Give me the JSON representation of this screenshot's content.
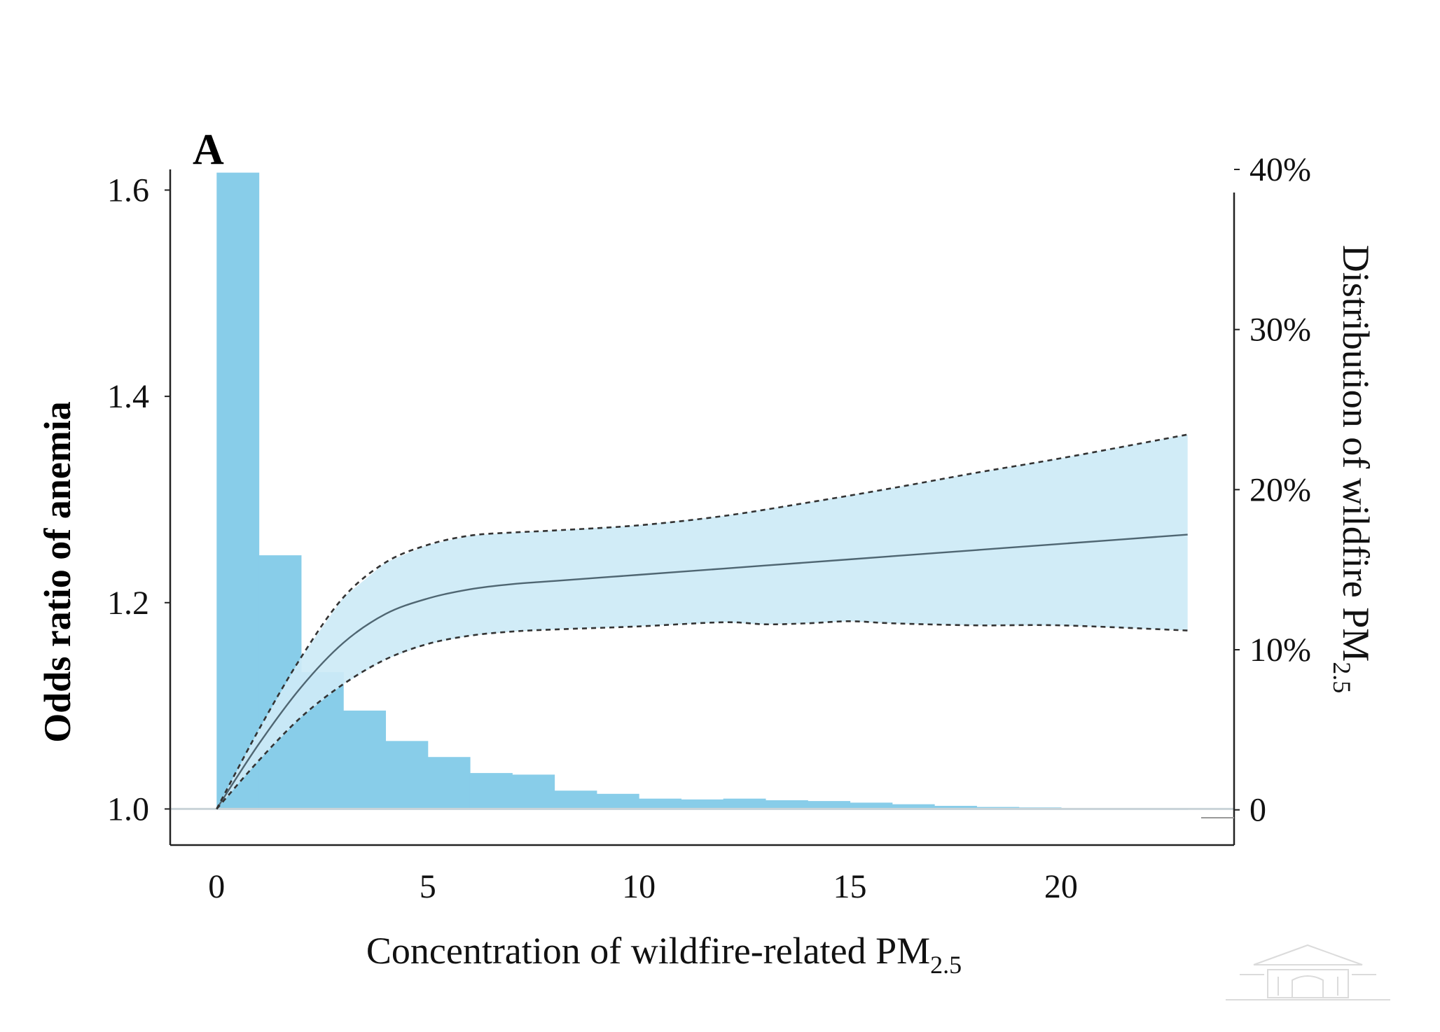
{
  "chart_data": {
    "type": "line",
    "panel_label": "A",
    "xlabel": {
      "main": "Concentration of wildfire-related PM",
      "sub": "2.5"
    },
    "ylabel": "Odds ratio of anemia",
    "y2label": {
      "main": "Distribution of wildfire PM",
      "sub": "2.5"
    },
    "xlim": [
      -1.1,
      24.1
    ],
    "ylim": [
      0.965,
      1.62
    ],
    "y2lim": [
      -2.2,
      40
    ],
    "x_ticks": [
      0,
      5,
      10,
      15,
      20
    ],
    "x_tick_labels": [
      "0",
      "5",
      "10",
      "15",
      "20"
    ],
    "y_ticks": [
      1.0,
      1.2,
      1.4,
      1.6
    ],
    "y_tick_labels": [
      "1.0",
      "1.2",
      "1.4",
      "1.6"
    ],
    "y2_ticks": [
      0,
      10,
      20,
      30,
      40
    ],
    "y2_tick_labels": [
      "0",
      "10%",
      "20%",
      "30%",
      "40%"
    ],
    "histogram": {
      "name": "Distribution of wildfire PM2.5",
      "bin_width": 1,
      "bin_starts": [
        0,
        1,
        2,
        3,
        4,
        5,
        6,
        7,
        8,
        9,
        10,
        11,
        12,
        13,
        14,
        15,
        16,
        17,
        18,
        19,
        20,
        21,
        22
      ],
      "values": [
        39.8,
        15.9,
        8.6,
        6.2,
        4.3,
        3.3,
        2.3,
        2.2,
        1.2,
        1.0,
        0.7,
        0.65,
        0.7,
        0.6,
        0.55,
        0.45,
        0.35,
        0.25,
        0.18,
        0.15,
        0.1,
        0.05,
        0.03
      ],
      "color": "#88CDE9"
    },
    "series": [
      {
        "name": "Odds ratio",
        "x": [
          0,
          1,
          2,
          3,
          4,
          5,
          6,
          7,
          8,
          10,
          12,
          14,
          16,
          18,
          20,
          23
        ],
        "values": [
          1.0,
          1.063,
          1.118,
          1.161,
          1.189,
          1.204,
          1.213,
          1.218,
          1.221,
          1.227,
          1.233,
          1.239,
          1.245,
          1.251,
          1.257,
          1.266
        ],
        "color": "#4F6672"
      },
      {
        "name": "Upper 95% CI",
        "x": [
          0,
          1,
          2,
          3,
          4,
          5,
          6,
          7,
          8,
          10,
          12,
          14,
          16,
          18,
          20,
          23
        ],
        "values": [
          1.0,
          1.077,
          1.147,
          1.205,
          1.239,
          1.256,
          1.265,
          1.268,
          1.27,
          1.275,
          1.284,
          1.297,
          1.311,
          1.326,
          1.34,
          1.363
        ],
        "color": "#333333",
        "style": "dashed"
      },
      {
        "name": "Lower 95% CI",
        "x": [
          0,
          1,
          2,
          3,
          4,
          5,
          6,
          7,
          8,
          10,
          12,
          13,
          14,
          15,
          16,
          18,
          20,
          23
        ],
        "values": [
          1.0,
          1.047,
          1.089,
          1.121,
          1.145,
          1.16,
          1.168,
          1.172,
          1.174,
          1.177,
          1.181,
          1.179,
          1.18,
          1.182,
          1.18,
          1.178,
          1.178,
          1.173
        ],
        "color": "#333333",
        "style": "dashed"
      }
    ],
    "band_color": "#CDEAF6",
    "baseline": 1.0
  }
}
